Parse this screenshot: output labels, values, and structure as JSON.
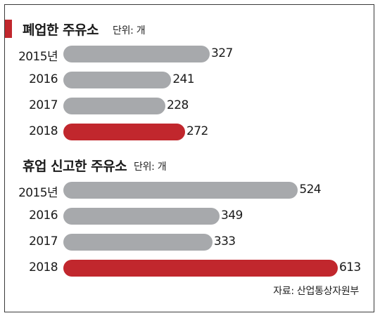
{
  "colors": {
    "normal": "#a7a9ac",
    "highlight": "#c1272d"
  },
  "chart_data": [
    {
      "type": "bar",
      "title": "폐업한 주유소",
      "unit_label": "단위: 개",
      "categories": [
        "2015년",
        "2016",
        "2017",
        "2018"
      ],
      "values": [
        327,
        241,
        228,
        272
      ],
      "highlight_index": 3
    },
    {
      "type": "bar",
      "title": "휴업 신고한 주유소",
      "unit_label": "단위: 개",
      "categories": [
        "2015년",
        "2016",
        "2017",
        "2018"
      ],
      "values": [
        524,
        349,
        333,
        613
      ],
      "highlight_index": 3
    }
  ],
  "source": "자료: 산업통상자원부"
}
